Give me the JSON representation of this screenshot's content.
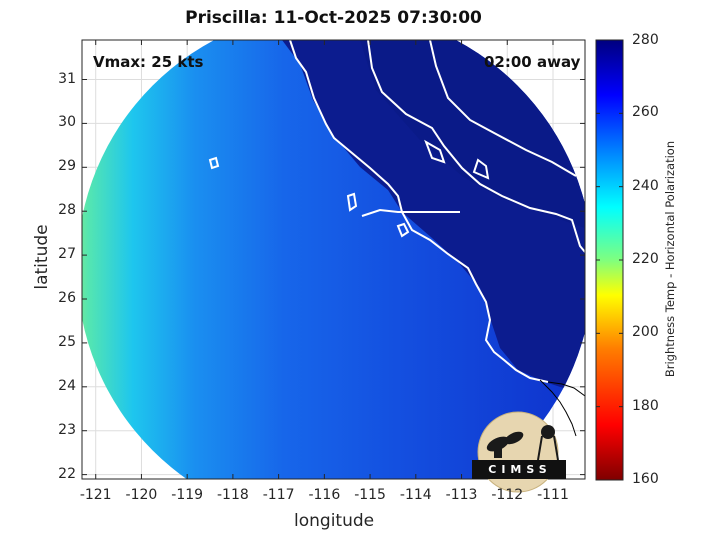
{
  "figure": {
    "title": "Priscilla: 11-Oct-2025 07:30:00",
    "xlabel": "longitude",
    "ylabel": "latitude",
    "vmax_text": "Vmax: 25 kts",
    "away_text": "02:00 away",
    "logo_text": "CIMSS"
  },
  "axes": {
    "x_range": [
      -121.3,
      -110.3
    ],
    "y_range": [
      21.9,
      31.9
    ],
    "x_ticks": [
      "-121",
      "-120",
      "-119",
      "-118",
      "-117",
      "-116",
      "-115",
      "-114",
      "-113",
      "-112",
      "-111"
    ],
    "y_ticks": [
      "31",
      "30",
      "29",
      "28",
      "27",
      "26",
      "25",
      "24",
      "23",
      "22"
    ],
    "grid": true
  },
  "colorbar": {
    "label": "Brightness Temp - Horizontal Polarization",
    "ticks": [
      "280",
      "260",
      "240",
      "220",
      "200",
      "180",
      "160"
    ],
    "range": [
      160,
      280
    ],
    "colors": [
      "#7f0000",
      "#ff0000",
      "#ff7f00",
      "#ffff00",
      "#7fff7f",
      "#00ffff",
      "#007fff",
      "#0000ff",
      "#00007f"
    ]
  }
}
